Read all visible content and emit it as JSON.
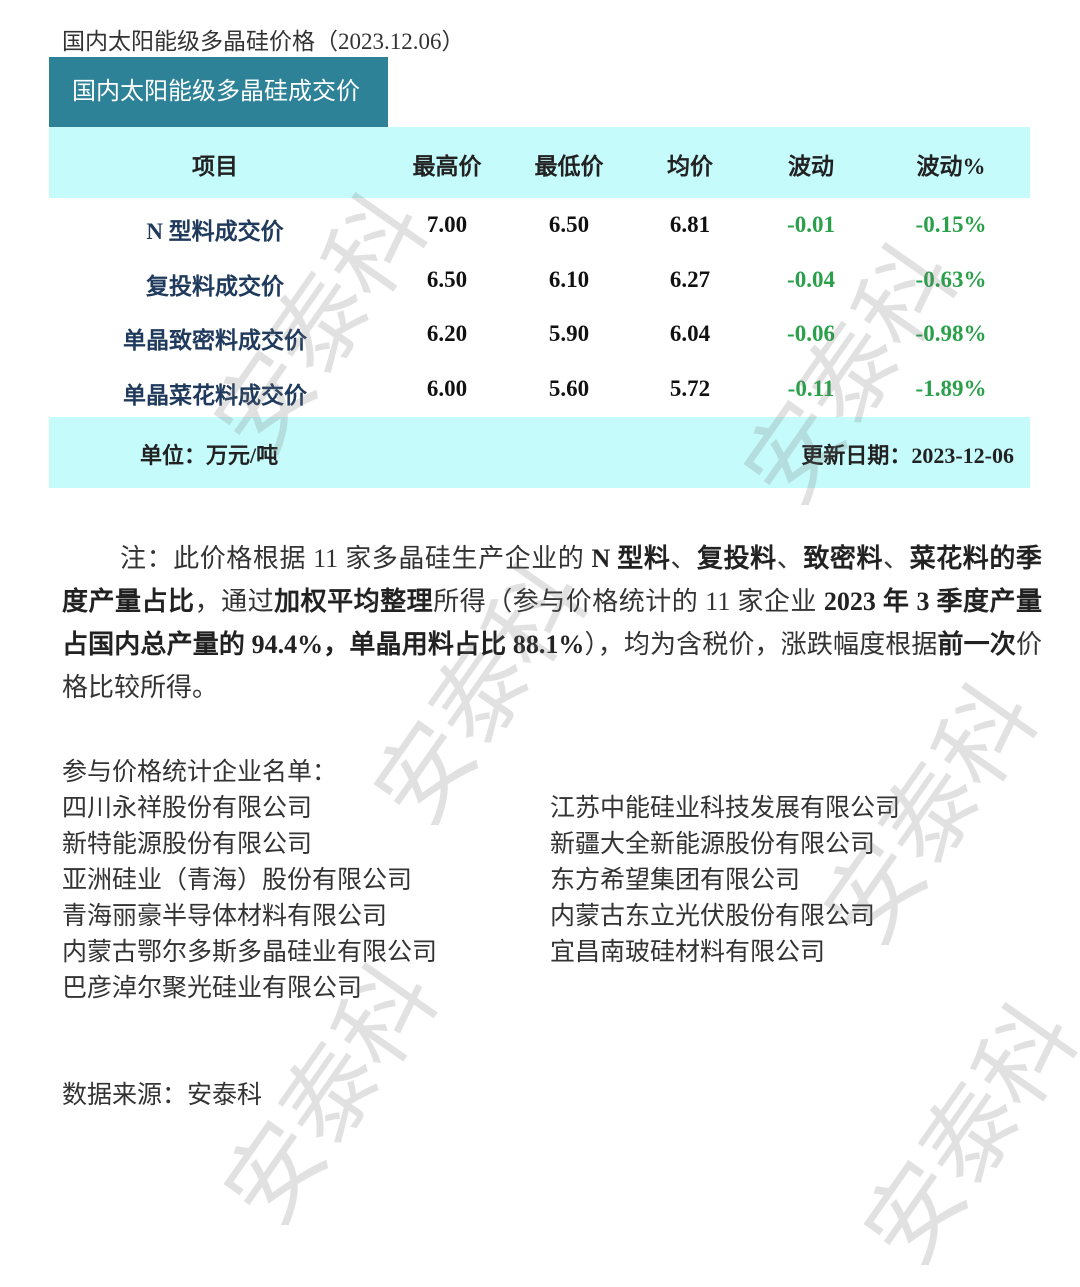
{
  "title": "国内太阳能级多晶硅价格（2023.12.06）",
  "table": {
    "caption": "国内太阳能级多晶硅成交价",
    "headers": [
      "项目",
      "最高价",
      "最低价",
      "均价",
      "波动",
      "波动%"
    ],
    "rows": [
      [
        "N 型料成交价",
        "7.00",
        "6.50",
        "6.81",
        "-0.01",
        "-0.15%"
      ],
      [
        "复投料成交价",
        "6.50",
        "6.10",
        "6.27",
        "-0.04",
        "-0.63%"
      ],
      [
        "单晶致密料成交价",
        "6.20",
        "5.90",
        "6.04",
        "-0.06",
        "-0.98%"
      ],
      [
        "单晶菜花料成交价",
        "6.00",
        "5.60",
        "5.72",
        "-0.11",
        "-1.89%"
      ]
    ],
    "unit": "单位：万元/吨",
    "updated": "更新日期：2023-12-06"
  },
  "colors": {
    "caption_bg": "#2e8297",
    "band_bg": "#c6fbfc",
    "negative": "#2aa04a",
    "item_text": "#1f3a5c"
  },
  "note": [
    {
      "t": "注：此价格根据 11 家多晶硅生产企业的 ",
      "b": false
    },
    {
      "t": "N 型料",
      "b": true
    },
    {
      "t": "、",
      "b": false
    },
    {
      "t": "复投料",
      "b": true
    },
    {
      "t": "、",
      "b": false
    },
    {
      "t": "致密料",
      "b": true
    },
    {
      "t": "、",
      "b": false
    },
    {
      "t": "菜花料的季度产量占比",
      "b": true
    },
    {
      "t": "，通过",
      "b": false
    },
    {
      "t": "加权平均整理",
      "b": true
    },
    {
      "t": "所得（参与价格统计的 11 家企业 ",
      "b": false
    },
    {
      "t": "2023 年 3 季度产量占国内总产量的 94.4%，单晶用料占比 88.1%",
      "b": true
    },
    {
      "t": "），均为含税价，涨跌幅度根据",
      "b": false
    },
    {
      "t": "前一次",
      "b": true
    },
    {
      "t": "价格比较所得。",
      "b": false
    }
  ],
  "companies": {
    "heading": "参与价格统计企业名单：",
    "left": [
      "四川永祥股份有限公司",
      "新特能源股份有限公司",
      "亚洲硅业（青海）股份有限公司",
      "青海丽豪半导体材料有限公司",
      "内蒙古鄂尔多斯多晶硅业有限公司",
      "巴彦淖尔聚光硅业有限公司"
    ],
    "right": [
      "江苏中能硅业科技发展有限公司",
      "新疆大全新能源股份有限公司",
      "东方希望集团有限公司",
      "内蒙古东立光伏股份有限公司",
      "宜昌南玻硅材料有限公司"
    ]
  },
  "source": "数据来源：安泰科",
  "watermark": "安泰科"
}
